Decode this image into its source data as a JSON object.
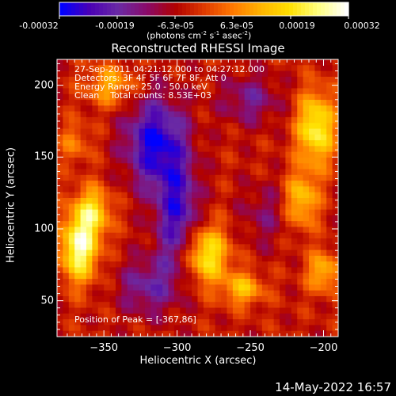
{
  "colorbar": {
    "ticks": [
      "-0.00032",
      "-0.00019",
      "-6.3e-05",
      "6.3e-05",
      "0.00019",
      "0.00032"
    ],
    "units_main": "(photons cm",
    "units_e1": "-2",
    "units_mid1": " s",
    "units_e2": "-1",
    "units_mid2": " asec",
    "units_e3": "-2",
    "units_end": ")"
  },
  "info": {
    "line1": "27-Sep-2011 04:21:12.000 to 04:27:12.000",
    "line2": "Detectors: 3F 4F 5F 6F 7F 8F, Att 0",
    "line3": "Energy Range: 25.0 - 50.0 keV",
    "line4": "Clean    Total counts: 8.53E+03"
  },
  "peak_text": "Position of Peak = [-367,86]",
  "timestamp": "14-May-2022 16:57",
  "chart_data": {
    "type": "heatmap",
    "title": "Reconstructed RHESSI Image",
    "xlabel": "Heliocentric X (arcsec)",
    "ylabel": "Heliocentric Y (arcsec)",
    "xlim": [
      -382,
      -190
    ],
    "ylim": [
      25,
      218
    ],
    "xticks": [
      -350,
      -300,
      -250,
      -200
    ],
    "yticks": [
      50,
      100,
      150,
      200
    ],
    "xtick_labels": [
      "−350",
      "−300",
      "−250",
      "−200"
    ],
    "ytick_labels": [
      "50",
      "100",
      "150",
      "200"
    ],
    "zlim": [
      -0.00032,
      0.00032
    ],
    "colormap": [
      "#0000ff",
      "#4b00b4",
      "#6a2aa4",
      "#8a0a6a",
      "#b00000",
      "#e03a00",
      "#ff7800",
      "#ffb400",
      "#ffe000",
      "#ffff80",
      "#ffffff"
    ],
    "peak_position": [
      -367,
      86
    ],
    "grid_size": [
      48,
      48
    ],
    "sources": [
      {
        "x": -367,
        "y": 86,
        "amp": 0.00032,
        "sx": 9,
        "sy": 16
      },
      {
        "x": -358,
        "y": 112,
        "amp": 0.00022,
        "sx": 9,
        "sy": 12
      },
      {
        "x": -280,
        "y": 82,
        "amp": 0.00026,
        "sx": 11,
        "sy": 14
      },
      {
        "x": -255,
        "y": 58,
        "amp": 0.00018,
        "sx": 10,
        "sy": 8
      },
      {
        "x": -205,
        "y": 170,
        "amp": 0.00028,
        "sx": 9,
        "sy": 18
      },
      {
        "x": -215,
        "y": 120,
        "amp": 0.0002,
        "sx": 8,
        "sy": 14
      },
      {
        "x": -200,
        "y": 70,
        "amp": 0.00018,
        "sx": 8,
        "sy": 10
      },
      {
        "x": -345,
        "y": 200,
        "amp": 0.00016,
        "sx": 12,
        "sy": 10
      },
      {
        "x": -370,
        "y": 160,
        "amp": 0.0001,
        "sx": 8,
        "sy": 10
      },
      {
        "x": -315,
        "y": 160,
        "amp": -0.00026,
        "sx": 14,
        "sy": 22
      },
      {
        "x": -300,
        "y": 110,
        "amp": -0.00022,
        "sx": 10,
        "sy": 28
      },
      {
        "x": -320,
        "y": 60,
        "amp": -0.00014,
        "sx": 14,
        "sy": 14
      },
      {
        "x": -250,
        "y": 190,
        "amp": -0.00012,
        "sx": 14,
        "sy": 12
      },
      {
        "x": -240,
        "y": 110,
        "amp": -8e-05,
        "sx": 12,
        "sy": 16
      }
    ]
  }
}
